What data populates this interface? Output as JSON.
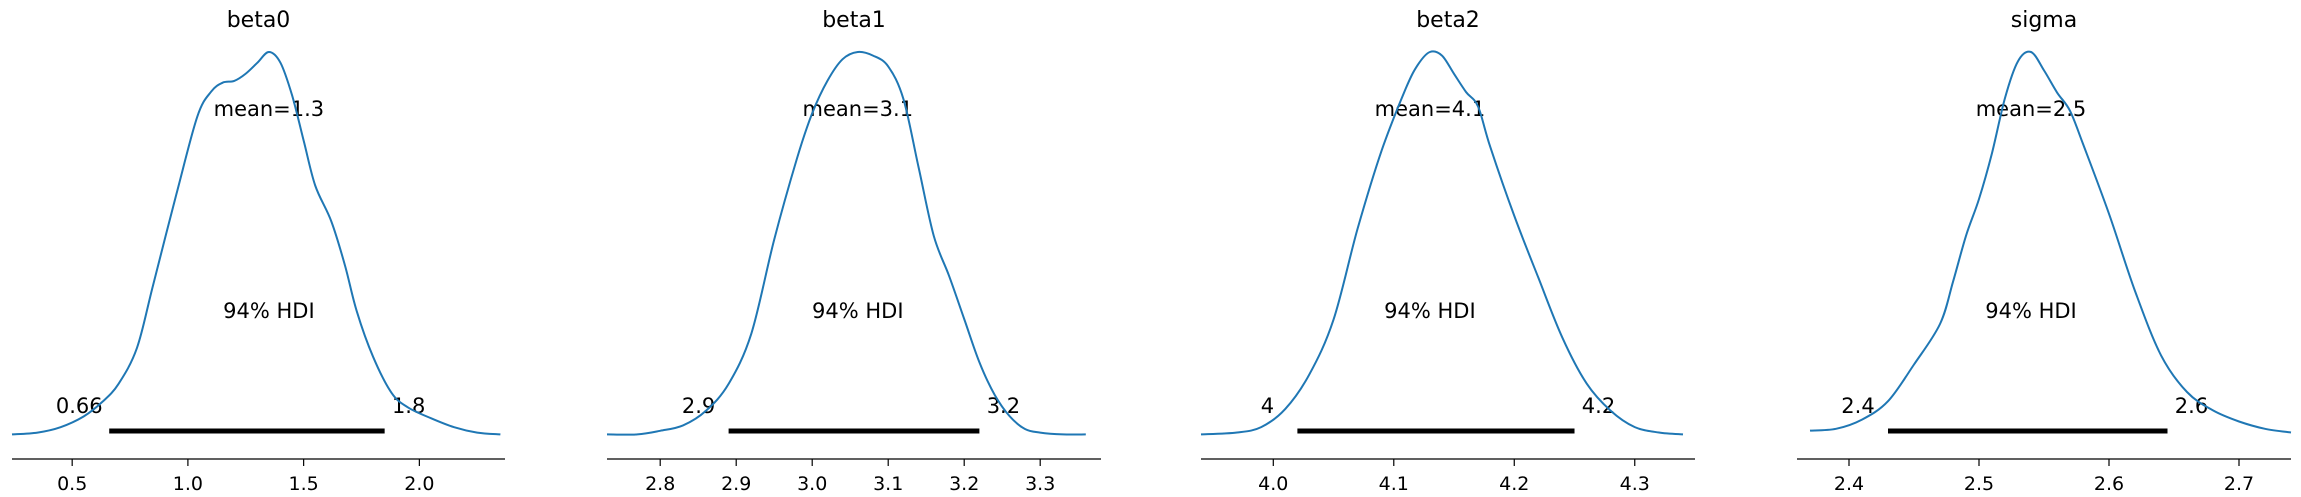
{
  "chart_data": [
    {
      "type": "area",
      "title": "beta0",
      "xlim": [
        0.24,
        2.37
      ],
      "ticks": [
        "0.5",
        "1.0",
        "1.5",
        "2.0"
      ],
      "tick_values": [
        0.5,
        1.0,
        1.5,
        2.0
      ],
      "mean_label": "mean=1.3",
      "hdi_label": "94% HDI",
      "hdi": [
        0.66,
        1.85
      ],
      "hdi_low_label": "0.66",
      "hdi_high_label": "1.8",
      "density": [
        [
          0.24,
          0.02
        ],
        [
          0.35,
          0.03
        ],
        [
          0.45,
          0.06
        ],
        [
          0.55,
          0.12
        ],
        [
          0.63,
          0.2
        ],
        [
          0.7,
          0.3
        ],
        [
          0.78,
          0.5
        ],
        [
          0.85,
          0.85
        ],
        [
          0.95,
          1.35
        ],
        [
          1.04,
          1.78
        ],
        [
          1.1,
          1.92
        ],
        [
          1.15,
          1.97
        ],
        [
          1.2,
          1.98
        ],
        [
          1.25,
          2.02
        ],
        [
          1.3,
          2.08
        ],
        [
          1.35,
          2.14
        ],
        [
          1.4,
          2.08
        ],
        [
          1.45,
          1.9
        ],
        [
          1.5,
          1.65
        ],
        [
          1.55,
          1.4
        ],
        [
          1.62,
          1.2
        ],
        [
          1.68,
          0.95
        ],
        [
          1.73,
          0.7
        ],
        [
          1.8,
          0.45
        ],
        [
          1.88,
          0.25
        ],
        [
          1.95,
          0.17
        ],
        [
          2.05,
          0.11
        ],
        [
          2.15,
          0.06
        ],
        [
          2.25,
          0.03
        ],
        [
          2.35,
          0.02
        ]
      ]
    },
    {
      "type": "area",
      "title": "beta1",
      "xlim": [
        2.73,
        3.38
      ],
      "ticks": [
        "2.8",
        "2.9",
        "3.0",
        "3.1",
        "3.2",
        "3.3"
      ],
      "tick_values": [
        2.8,
        2.9,
        3.0,
        3.1,
        3.2,
        3.3
      ],
      "mean_label": "mean=3.1",
      "hdi_label": "94% HDI",
      "hdi": [
        2.89,
        3.22
      ],
      "hdi_low_label": "2.9",
      "hdi_high_label": "3.2",
      "density": [
        [
          2.73,
          0.02
        ],
        [
          2.77,
          0.02
        ],
        [
          2.8,
          0.04
        ],
        [
          2.83,
          0.07
        ],
        [
          2.86,
          0.15
        ],
        [
          2.89,
          0.3
        ],
        [
          2.92,
          0.58
        ],
        [
          2.95,
          1.1
        ],
        [
          2.98,
          1.55
        ],
        [
          3.0,
          1.8
        ],
        [
          3.02,
          1.98
        ],
        [
          3.04,
          2.1
        ],
        [
          3.06,
          2.14
        ],
        [
          3.08,
          2.12
        ],
        [
          3.1,
          2.06
        ],
        [
          3.12,
          1.88
        ],
        [
          3.14,
          1.5
        ],
        [
          3.16,
          1.12
        ],
        [
          3.18,
          0.9
        ],
        [
          3.2,
          0.66
        ],
        [
          3.22,
          0.42
        ],
        [
          3.24,
          0.24
        ],
        [
          3.26,
          0.12
        ],
        [
          3.28,
          0.05
        ],
        [
          3.3,
          0.03
        ],
        [
          3.33,
          0.02
        ],
        [
          3.36,
          0.02
        ]
      ]
    },
    {
      "type": "area",
      "title": "beta2",
      "xlim": [
        3.94,
        4.35
      ],
      "ticks": [
        "4.0",
        "4.1",
        "4.2",
        "4.3"
      ],
      "tick_values": [
        4.0,
        4.1,
        4.2,
        4.3
      ],
      "mean_label": "mean=4.1",
      "hdi_label": "94% HDI",
      "hdi": [
        4.02,
        4.25
      ],
      "hdi_low_label": "4",
      "hdi_high_label": "4.2",
      "density": [
        [
          3.94,
          0.02
        ],
        [
          3.97,
          0.03
        ],
        [
          3.99,
          0.06
        ],
        [
          4.01,
          0.16
        ],
        [
          4.03,
          0.35
        ],
        [
          4.05,
          0.65
        ],
        [
          4.07,
          1.15
        ],
        [
          4.09,
          1.58
        ],
        [
          4.11,
          1.92
        ],
        [
          4.12,
          2.05
        ],
        [
          4.13,
          2.12
        ],
        [
          4.14,
          2.1
        ],
        [
          4.15,
          2.0
        ],
        [
          4.16,
          1.9
        ],
        [
          4.17,
          1.82
        ],
        [
          4.18,
          1.6
        ],
        [
          4.2,
          1.22
        ],
        [
          4.22,
          0.88
        ],
        [
          4.24,
          0.55
        ],
        [
          4.26,
          0.3
        ],
        [
          4.28,
          0.15
        ],
        [
          4.3,
          0.06
        ],
        [
          4.32,
          0.03
        ],
        [
          4.34,
          0.02
        ]
      ]
    },
    {
      "type": "area",
      "title": "sigma",
      "xlim": [
        2.36,
        2.74
      ],
      "ticks": [
        "2.4",
        "2.5",
        "2.6",
        "2.7"
      ],
      "tick_values": [
        2.4,
        2.5,
        2.6,
        2.7
      ],
      "mean_label": "mean=2.5",
      "hdi_label": "94% HDI",
      "hdi": [
        2.43,
        2.645
      ],
      "hdi_low_label": "2.4",
      "hdi_high_label": "2.6",
      "density": [
        [
          2.37,
          0.04
        ],
        [
          2.39,
          0.05
        ],
        [
          2.41,
          0.1
        ],
        [
          2.43,
          0.2
        ],
        [
          2.45,
          0.4
        ],
        [
          2.47,
          0.62
        ],
        [
          2.48,
          0.85
        ],
        [
          2.49,
          1.1
        ],
        [
          2.5,
          1.3
        ],
        [
          2.51,
          1.55
        ],
        [
          2.52,
          1.85
        ],
        [
          2.53,
          2.05
        ],
        [
          2.54,
          2.1
        ],
        [
          2.55,
          2.0
        ],
        [
          2.56,
          1.88
        ],
        [
          2.57,
          1.78
        ],
        [
          2.58,
          1.6
        ],
        [
          2.6,
          1.22
        ],
        [
          2.62,
          0.8
        ],
        [
          2.64,
          0.45
        ],
        [
          2.66,
          0.25
        ],
        [
          2.68,
          0.15
        ],
        [
          2.7,
          0.09
        ],
        [
          2.72,
          0.05
        ],
        [
          2.74,
          0.03
        ]
      ]
    }
  ]
}
